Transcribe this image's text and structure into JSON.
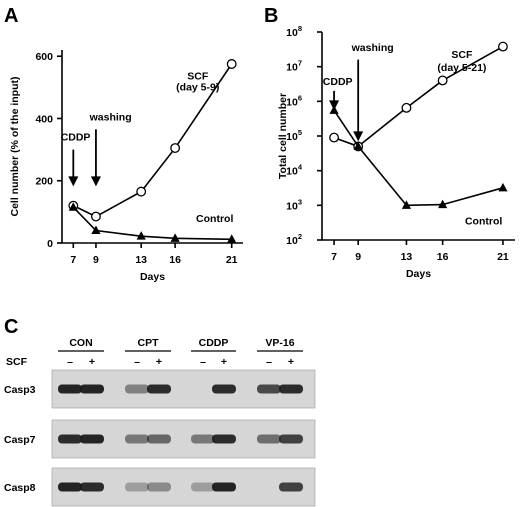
{
  "chart_data": [
    {
      "type": "line",
      "panel": "A",
      "xlabel": "Days",
      "ylabel": "Cell number (% of the input)",
      "x_ticks": [
        7,
        9,
        13,
        16,
        21
      ],
      "y_ticks": [
        0,
        200,
        400,
        600
      ],
      "xlim": [
        6,
        22
      ],
      "ylim": [
        0,
        620
      ],
      "yscale": "linear",
      "series": [
        {
          "marker": "open-circle",
          "x": [
            7,
            9,
            13,
            16,
            21
          ],
          "y": [
            120,
            85,
            165,
            305,
            575
          ]
        },
        {
          "marker": "filled-triangle",
          "x": [
            7,
            9,
            13,
            16,
            21
          ],
          "y": [
            115,
            40,
            22,
            15,
            12
          ]
        }
      ],
      "annotations": [
        {
          "text": "SCF",
          "x": 18,
          "y": 525
        },
        {
          "text": "(day 5-9)",
          "x": 18,
          "y": 490
        },
        {
          "text": "Control",
          "x": 19.5,
          "y": 68
        },
        {
          "text": "CDDP",
          "x": 7.2,
          "y": 330
        },
        {
          "text": "washing",
          "x": 10.3,
          "y": 393
        }
      ],
      "arrows": [
        {
          "x": 7,
          "y_from": 300,
          "y_to": 182
        },
        {
          "x": 9,
          "y_from": 365,
          "y_to": 182
        }
      ]
    },
    {
      "type": "line",
      "panel": "B",
      "xlabel": "Days",
      "ylabel": "Total cell number",
      "x_ticks": [
        7,
        9,
        13,
        16,
        21
      ],
      "y_tick_exponents": [
        "2",
        "3",
        "4",
        "5",
        "6",
        "7",
        "8"
      ],
      "xlim": [
        6,
        22
      ],
      "ylim": [
        100,
        100000000
      ],
      "yscale": "log",
      "series": [
        {
          "marker": "open-circle",
          "x": [
            7,
            9,
            13,
            16,
            21
          ],
          "y": [
            90000,
            50000,
            650000,
            4000000,
            38000000
          ]
        },
        {
          "marker": "filled-triangle",
          "x": [
            7,
            9,
            13,
            16,
            21
          ],
          "y": [
            550000,
            50000,
            1000,
            1050,
            3200
          ]
        }
      ],
      "annotations": [
        {
          "text": "SCF",
          "x": 17.6,
          "y": 18000000
        },
        {
          "text": "(day 5-21)",
          "x": 17.6,
          "y": 7500000
        },
        {
          "text": "Control",
          "x": 19.4,
          "y": 280
        },
        {
          "text": "CDDP",
          "x": 7.3,
          "y": 3000000
        },
        {
          "text": "washing",
          "x": 10.2,
          "y": 28000000
        }
      ],
      "arrows": [
        {
          "x": 7,
          "y_from": 2000000,
          "y_to": 550000
        },
        {
          "x": 9,
          "y_from": 16000000,
          "y_to": 70000
        }
      ]
    }
  ],
  "panel_labels": {
    "a": "A",
    "b": "B",
    "c": "C"
  },
  "blot": {
    "groups": [
      "CON",
      "CPT",
      "CDDP",
      "VP-16"
    ],
    "scf_label": "SCF",
    "scf_marks": [
      "–",
      "+",
      "–",
      "+",
      "–",
      "+",
      "–",
      "+"
    ],
    "rows": [
      {
        "label": "Casp3",
        "intensities": [
          0.95,
          0.95,
          0.45,
          0.9,
          0.0,
          0.9,
          0.75,
          0.9
        ]
      },
      {
        "label": "Casp7",
        "intensities": [
          0.9,
          0.95,
          0.5,
          0.6,
          0.5,
          0.9,
          0.55,
          0.8
        ]
      },
      {
        "label": "Casp8",
        "intensities": [
          0.95,
          0.9,
          0.3,
          0.4,
          0.3,
          0.95,
          0.0,
          0.8
        ]
      }
    ]
  }
}
